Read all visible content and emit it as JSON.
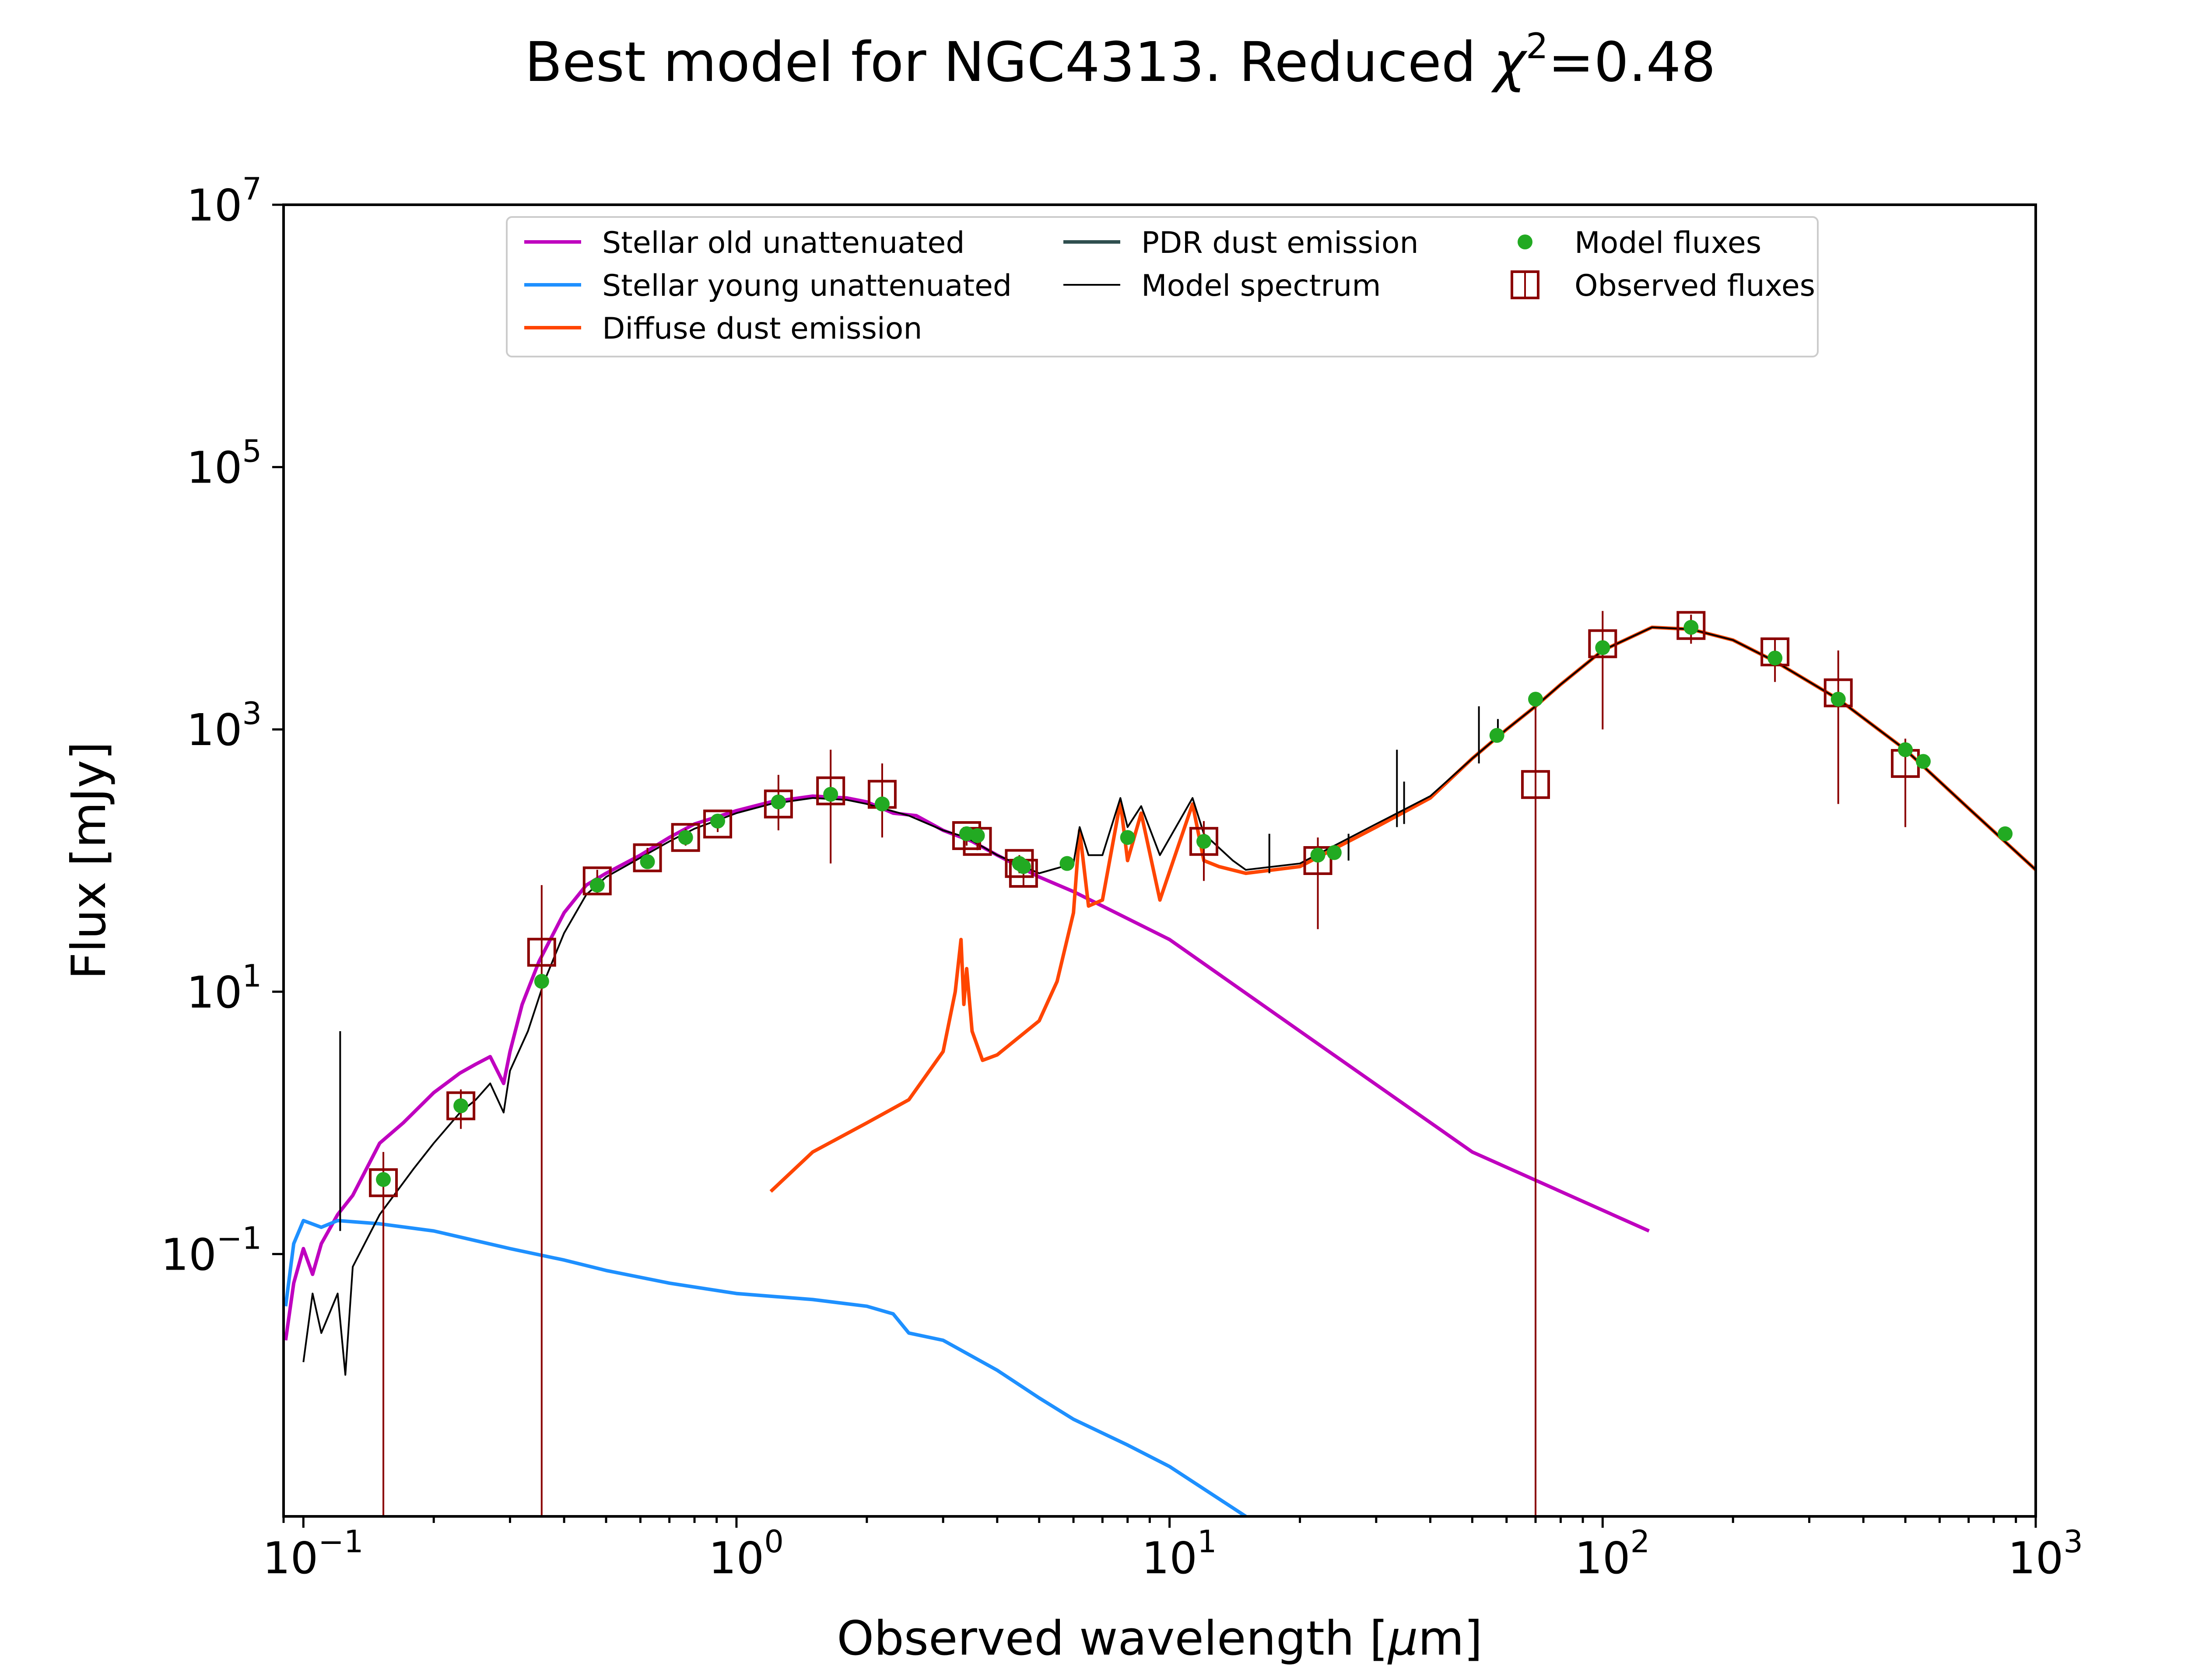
{
  "chart_data": {
    "type": "line",
    "title_prefix": "Best model for NGC4313. Reduced ",
    "title_chi": "χ",
    "title_exp": "2",
    "title_suffix": "=0.48",
    "xlabel_prefix": "Observed wavelength [",
    "xlabel_mu": "μ",
    "xlabel_suffix": "m]",
    "ylabel": "Flux [mJy]",
    "xscale": "log",
    "yscale": "log",
    "xlim": [
      0.09,
      1000
    ],
    "ylim": [
      0.001,
      10000000
    ],
    "x_ticks": [
      {
        "value": 0.1,
        "base": "10",
        "exp": "−1"
      },
      {
        "value": 1,
        "base": "10",
        "exp": "0"
      },
      {
        "value": 10,
        "base": "10",
        "exp": "1"
      },
      {
        "value": 100,
        "base": "10",
        "exp": "2"
      },
      {
        "value": 1000,
        "base": "10",
        "exp": "3"
      }
    ],
    "y_ticks": [
      {
        "value": 0.1,
        "base": "10",
        "exp": "−1"
      },
      {
        "value": 10,
        "base": "10",
        "exp": "1"
      },
      {
        "value": 1000,
        "base": "10",
        "exp": "3"
      },
      {
        "value": 100000,
        "base": "10",
        "exp": "5"
      },
      {
        "value": 10000000,
        "base": "10",
        "exp": "7"
      }
    ],
    "grid": false,
    "legend_position": "top-center",
    "legend": [
      {
        "label": "Stellar old unattenuated",
        "kind": "line",
        "color": "#bf00bf",
        "width": "thick"
      },
      {
        "label": "Stellar young unattenuated",
        "kind": "line",
        "color": "#1e90ff",
        "width": "thick"
      },
      {
        "label": "Diffuse dust emission",
        "kind": "line",
        "color": "#ff4500",
        "width": "thick"
      },
      {
        "label": "PDR dust emission",
        "kind": "line",
        "color": "#2f4f4f",
        "width": "thick"
      },
      {
        "label": "Model spectrum",
        "kind": "line",
        "color": "#000000",
        "width": "thin"
      },
      {
        "label": "Model fluxes",
        "kind": "dot",
        "color": "#22aa22"
      },
      {
        "label": "Observed fluxes",
        "kind": "square",
        "color": "#8b0000"
      }
    ],
    "series": [
      {
        "name": "Stellar old unattenuated",
        "color": "#bf00bf",
        "points": [
          [
            0.091,
            0.022
          ],
          [
            0.095,
            0.06
          ],
          [
            0.1,
            0.11
          ],
          [
            0.105,
            0.07
          ],
          [
            0.11,
            0.12
          ],
          [
            0.12,
            0.2
          ],
          [
            0.13,
            0.28
          ],
          [
            0.15,
            0.7
          ],
          [
            0.17,
            1.0
          ],
          [
            0.2,
            1.7
          ],
          [
            0.23,
            2.4
          ],
          [
            0.25,
            2.8
          ],
          [
            0.27,
            3.2
          ],
          [
            0.29,
            2.0
          ],
          [
            0.3,
            3.5
          ],
          [
            0.32,
            8
          ],
          [
            0.35,
            17
          ],
          [
            0.4,
            40
          ],
          [
            0.45,
            65
          ],
          [
            0.5,
            80
          ],
          [
            0.6,
            110
          ],
          [
            0.7,
            150
          ],
          [
            0.8,
            190
          ],
          [
            1.0,
            240
          ],
          [
            1.2,
            280
          ],
          [
            1.5,
            310
          ],
          [
            1.8,
            300
          ],
          [
            2.0,
            280
          ],
          [
            2.3,
            230
          ],
          [
            2.6,
            220
          ],
          [
            3.0,
            170
          ],
          [
            3.5,
            140
          ],
          [
            4.0,
            110
          ],
          [
            5.0,
            75
          ],
          [
            6.0,
            58
          ],
          [
            7.0,
            45
          ],
          [
            10.0,
            25
          ],
          [
            20.0,
            5
          ],
          [
            50.0,
            0.6
          ],
          [
            128,
            0.15
          ]
        ]
      },
      {
        "name": "Stellar young unattenuated",
        "color": "#1e90ff",
        "points": [
          [
            0.091,
            0.04
          ],
          [
            0.095,
            0.12
          ],
          [
            0.1,
            0.18
          ],
          [
            0.11,
            0.16
          ],
          [
            0.12,
            0.18
          ],
          [
            0.15,
            0.17
          ],
          [
            0.2,
            0.15
          ],
          [
            0.3,
            0.11
          ],
          [
            0.4,
            0.09
          ],
          [
            0.5,
            0.075
          ],
          [
            0.7,
            0.06
          ],
          [
            1.0,
            0.05
          ],
          [
            1.5,
            0.045
          ],
          [
            2.0,
            0.04
          ],
          [
            2.3,
            0.035
          ],
          [
            2.5,
            0.025
          ],
          [
            3.0,
            0.022
          ],
          [
            4.0,
            0.013
          ],
          [
            5.0,
            0.008
          ],
          [
            6.0,
            0.0055
          ],
          [
            8.0,
            0.0035
          ],
          [
            10.0,
            0.0024
          ],
          [
            15.0,
            0.001
          ]
        ]
      },
      {
        "name": "Diffuse dust emission",
        "color": "#ff4500",
        "points": [
          [
            1.2,
            0.3
          ],
          [
            1.5,
            0.6
          ],
          [
            2.0,
            1.0
          ],
          [
            2.5,
            1.5
          ],
          [
            3.0,
            3.5
          ],
          [
            3.2,
            10
          ],
          [
            3.3,
            25
          ],
          [
            3.35,
            8
          ],
          [
            3.4,
            15
          ],
          [
            3.5,
            5
          ],
          [
            3.7,
            3.0
          ],
          [
            4.0,
            3.3
          ],
          [
            5.0,
            6
          ],
          [
            5.5,
            12
          ],
          [
            6.0,
            40
          ],
          [
            6.2,
            170
          ],
          [
            6.5,
            45
          ],
          [
            7.0,
            50
          ],
          [
            7.7,
            280
          ],
          [
            8.0,
            100
          ],
          [
            8.6,
            230
          ],
          [
            9.5,
            50
          ],
          [
            11.3,
            270
          ],
          [
            12.0,
            100
          ],
          [
            13.0,
            90
          ],
          [
            15.0,
            80
          ],
          [
            20.0,
            90
          ],
          [
            30.0,
            180
          ],
          [
            40.0,
            300
          ],
          [
            50.0,
            600
          ],
          [
            60.0,
            1000
          ],
          [
            70.0,
            1500
          ],
          [
            80.0,
            2200
          ],
          [
            100.0,
            4000
          ],
          [
            130.0,
            6000
          ],
          [
            160.0,
            5800
          ],
          [
            200.0,
            4800
          ],
          [
            250.0,
            3300
          ],
          [
            350.0,
            1700
          ],
          [
            500.0,
            700
          ],
          [
            700.0,
            250
          ],
          [
            1000.0,
            85
          ]
        ]
      },
      {
        "name": "Model spectrum",
        "color": "#000000",
        "points": [
          [
            0.1,
            0.015
          ],
          [
            0.105,
            0.05
          ],
          [
            0.11,
            0.025
          ],
          [
            0.12,
            0.05
          ],
          [
            0.125,
            0.012
          ],
          [
            0.13,
            0.08
          ],
          [
            0.15,
            0.2
          ],
          [
            0.18,
            0.45
          ],
          [
            0.2,
            0.7
          ],
          [
            0.23,
            1.2
          ],
          [
            0.25,
            1.5
          ],
          [
            0.27,
            2.0
          ],
          [
            0.29,
            1.2
          ],
          [
            0.3,
            2.5
          ],
          [
            0.33,
            5
          ],
          [
            0.36,
            12
          ],
          [
            0.4,
            28
          ],
          [
            0.45,
            55
          ],
          [
            0.5,
            75
          ],
          [
            0.6,
            105
          ],
          [
            0.7,
            140
          ],
          [
            0.8,
            175
          ],
          [
            1.0,
            230
          ],
          [
            1.2,
            270
          ],
          [
            1.5,
            300
          ],
          [
            1.8,
            290
          ],
          [
            2.0,
            270
          ],
          [
            2.5,
            220
          ],
          [
            3.0,
            170
          ],
          [
            3.4,
            150
          ],
          [
            4.0,
            110
          ],
          [
            5.0,
            80
          ],
          [
            6.0,
            95
          ],
          [
            6.2,
            180
          ],
          [
            6.5,
            110
          ],
          [
            7.0,
            110
          ],
          [
            7.7,
            300
          ],
          [
            8.0,
            180
          ],
          [
            8.6,
            260
          ],
          [
            9.5,
            110
          ],
          [
            11.3,
            300
          ],
          [
            12.0,
            160
          ],
          [
            14.0,
            100
          ],
          [
            15.0,
            85
          ],
          [
            20.0,
            95
          ],
          [
            30.0,
            190
          ],
          [
            40.0,
            310
          ],
          [
            50.0,
            600
          ],
          [
            60.0,
            1000
          ],
          [
            70.0,
            1500
          ],
          [
            80.0,
            2200
          ],
          [
            100.0,
            4000
          ],
          [
            130.0,
            6000
          ],
          [
            160.0,
            5800
          ],
          [
            200.0,
            4800
          ],
          [
            250.0,
            3300
          ],
          [
            350.0,
            1700
          ],
          [
            500.0,
            700
          ],
          [
            700.0,
            250
          ],
          [
            1000.0,
            85
          ]
        ]
      }
    ],
    "spikes": [
      {
        "x": 0.1216,
        "y1": 0.15,
        "y2": 5
      },
      {
        "x": 17.0,
        "y1": 80,
        "y2": 160
      },
      {
        "x": 25.9,
        "y1": 100,
        "y2": 160
      },
      {
        "x": 33.5,
        "y1": 180,
        "y2": 700
      },
      {
        "x": 34.8,
        "y1": 190,
        "y2": 400
      },
      {
        "x": 51.8,
        "y1": 550,
        "y2": 1500
      },
      {
        "x": 57.3,
        "y1": 800,
        "y2": 1200
      }
    ],
    "model_fluxes": [
      [
        0.153,
        0.37
      ],
      [
        0.231,
        1.35
      ],
      [
        0.355,
        12
      ],
      [
        0.477,
        65
      ],
      [
        0.623,
        98
      ],
      [
        0.763,
        150
      ],
      [
        0.905,
        200
      ],
      [
        1.25,
        280
      ],
      [
        1.65,
        320
      ],
      [
        2.17,
        270
      ],
      [
        3.4,
        160
      ],
      [
        3.6,
        155
      ],
      [
        4.5,
        95
      ],
      [
        4.6,
        90
      ],
      [
        5.8,
        95
      ],
      [
        8.0,
        150
      ],
      [
        12.0,
        140
      ],
      [
        22.0,
        110
      ],
      [
        24.0,
        115
      ],
      [
        57.0,
        900
      ],
      [
        70.0,
        1700
      ],
      [
        100.0,
        4200
      ],
      [
        160.0,
        6000
      ],
      [
        250.0,
        3500
      ],
      [
        350.0,
        1700
      ],
      [
        500.0,
        700
      ],
      [
        550.0,
        570
      ],
      [
        850.0,
        160
      ]
    ],
    "observed_fluxes": [
      {
        "x": 0.153,
        "y": 0.35,
        "lo": 0.001,
        "hi": 0.6
      },
      {
        "x": 0.231,
        "y": 1.35,
        "lo": 0.9,
        "hi": 1.8
      },
      {
        "x": 0.355,
        "y": 20,
        "lo": 0.001,
        "hi": 65
      },
      {
        "x": 0.477,
        "y": 70,
        "lo": 55,
        "hi": 85
      },
      {
        "x": 0.623,
        "y": 105,
        "lo": 90,
        "hi": 125
      },
      {
        "x": 0.763,
        "y": 150,
        "lo": 130,
        "hi": 175
      },
      {
        "x": 0.905,
        "y": 190,
        "lo": 165,
        "hi": 220
      },
      {
        "x": 1.25,
        "y": 270,
        "lo": 170,
        "hi": 450
      },
      {
        "x": 1.65,
        "y": 340,
        "lo": 95,
        "hi": 700
      },
      {
        "x": 2.17,
        "y": 320,
        "lo": 150,
        "hi": 550
      },
      {
        "x": 3.4,
        "y": 155,
        "lo": 130,
        "hi": 180
      },
      {
        "x": 3.6,
        "y": 140,
        "lo": 120,
        "hi": 160
      },
      {
        "x": 4.5,
        "y": 95,
        "lo": 80,
        "hi": 110
      },
      {
        "x": 4.6,
        "y": 80,
        "lo": 65,
        "hi": 95
      },
      {
        "x": 12.0,
        "y": 140,
        "lo": 70,
        "hi": 200
      },
      {
        "x": 22.0,
        "y": 100,
        "lo": 30,
        "hi": 150
      },
      {
        "x": 70.0,
        "y": 380,
        "lo": 0.001,
        "hi": 1900
      },
      {
        "x": 100.0,
        "y": 4500,
        "lo": 1000,
        "hi": 8000
      },
      {
        "x": 160.0,
        "y": 6200,
        "lo": 4500,
        "hi": 7500
      },
      {
        "x": 250.0,
        "y": 3900,
        "lo": 2300,
        "hi": 5000
      },
      {
        "x": 350.0,
        "y": 1900,
        "lo": 270,
        "hi": 4000
      },
      {
        "x": 500.0,
        "y": 550,
        "lo": 180,
        "hi": 850
      }
    ]
  }
}
